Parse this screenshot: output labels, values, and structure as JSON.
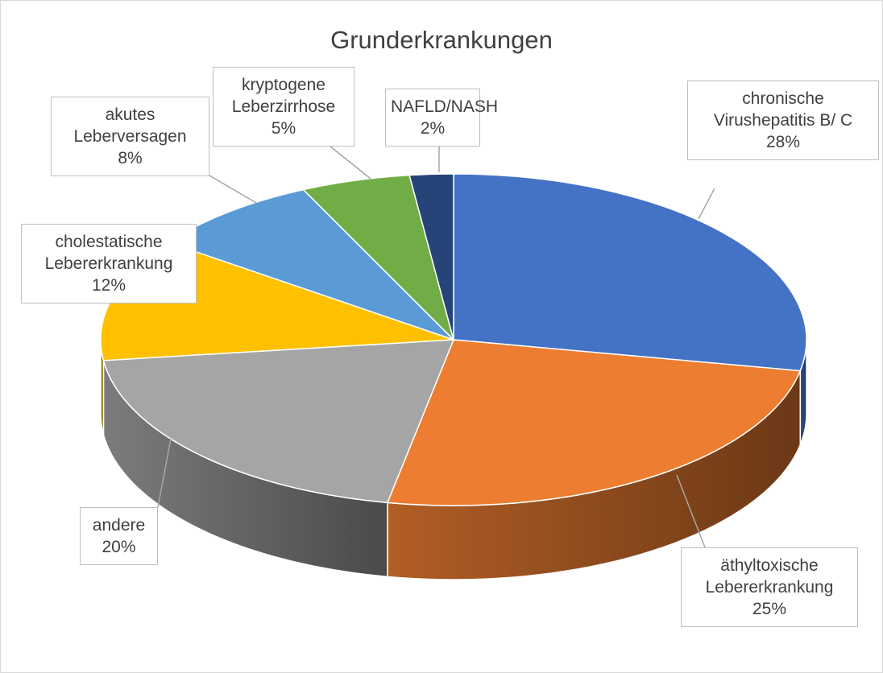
{
  "chart_data": {
    "type": "pie3d",
    "title": "Grunderkrankungen",
    "categories": [
      "chronische Virushepatitis B/ C",
      "äthyltoxische Lebererkrankung",
      "andere",
      "cholestatische Lebererkrankung",
      "akutes Leberversagen",
      "kryptogene Leberzirrhose",
      "NAFLD/NASH"
    ],
    "values": [
      28,
      25,
      20,
      12,
      8,
      5,
      2
    ],
    "value_labels": [
      "28%",
      "25%",
      "20%",
      "12%",
      "8%",
      "5%",
      "2%"
    ],
    "colors": [
      "#4472c4",
      "#ed7d31",
      "#a5a5a5",
      "#ffc000",
      "#5b9bd5",
      "#70ad47",
      "#264478"
    ]
  }
}
